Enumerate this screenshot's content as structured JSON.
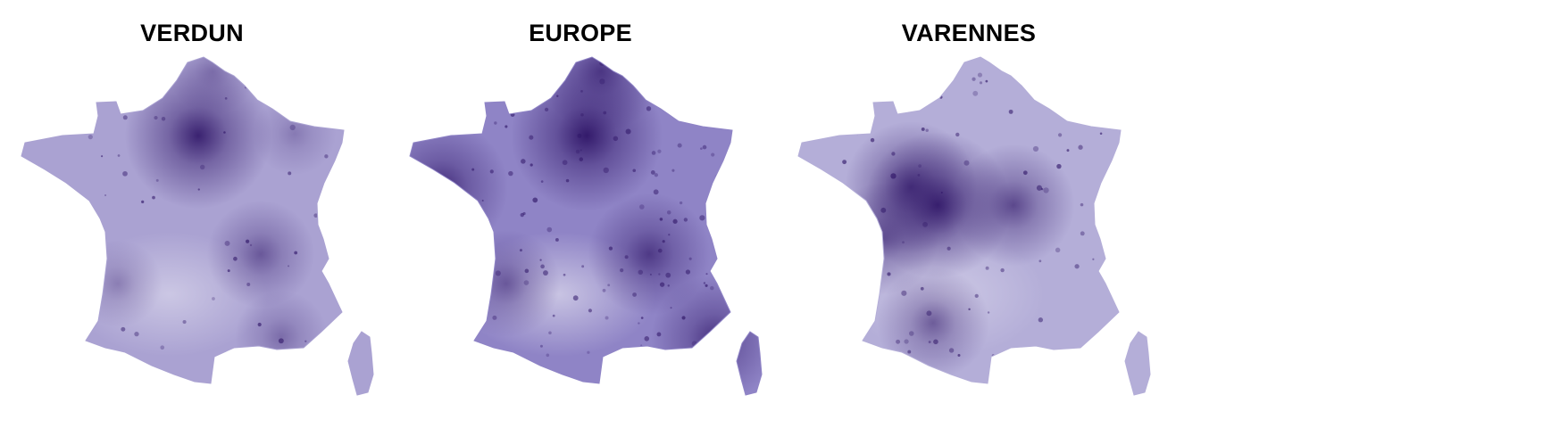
{
  "panels": [
    {
      "title": "VERDUN",
      "base_color": "#aaa2d2",
      "hotspots": [
        {
          "place": "Paris",
          "intensity": 0.95
        },
        {
          "place": "Lille",
          "intensity": 0.35
        },
        {
          "place": "Lorraine",
          "intensity": 0.3
        },
        {
          "place": "Lyon",
          "intensity": 0.55
        },
        {
          "place": "Bordeaux",
          "intensity": 0.35
        },
        {
          "place": "Marseille",
          "intensity": 0.4
        }
      ]
    },
    {
      "title": "EUROPE",
      "base_color": "#8f84c6",
      "hotspots": [
        {
          "place": "Paris",
          "intensity": 1.0
        },
        {
          "place": "Brittany",
          "intensity": 0.8
        },
        {
          "place": "Lille",
          "intensity": 0.7
        },
        {
          "place": "Lyon",
          "intensity": 0.7
        },
        {
          "place": "Riviera",
          "intensity": 0.75
        },
        {
          "place": "Bordeaux",
          "intensity": 0.55
        }
      ]
    },
    {
      "title": "VARENNES",
      "base_color": "#b4aed8",
      "hotspots": [
        {
          "place": "Centre",
          "intensity": 0.95
        },
        {
          "place": "Loire",
          "intensity": 0.8
        },
        {
          "place": "Burgundy",
          "intensity": 0.7
        },
        {
          "place": "Poitou",
          "intensity": 0.6
        },
        {
          "place": "Toulouse",
          "intensity": 0.6
        }
      ]
    }
  ],
  "colors": {
    "dark": "#2e1466",
    "light": "#cfcbe6"
  }
}
